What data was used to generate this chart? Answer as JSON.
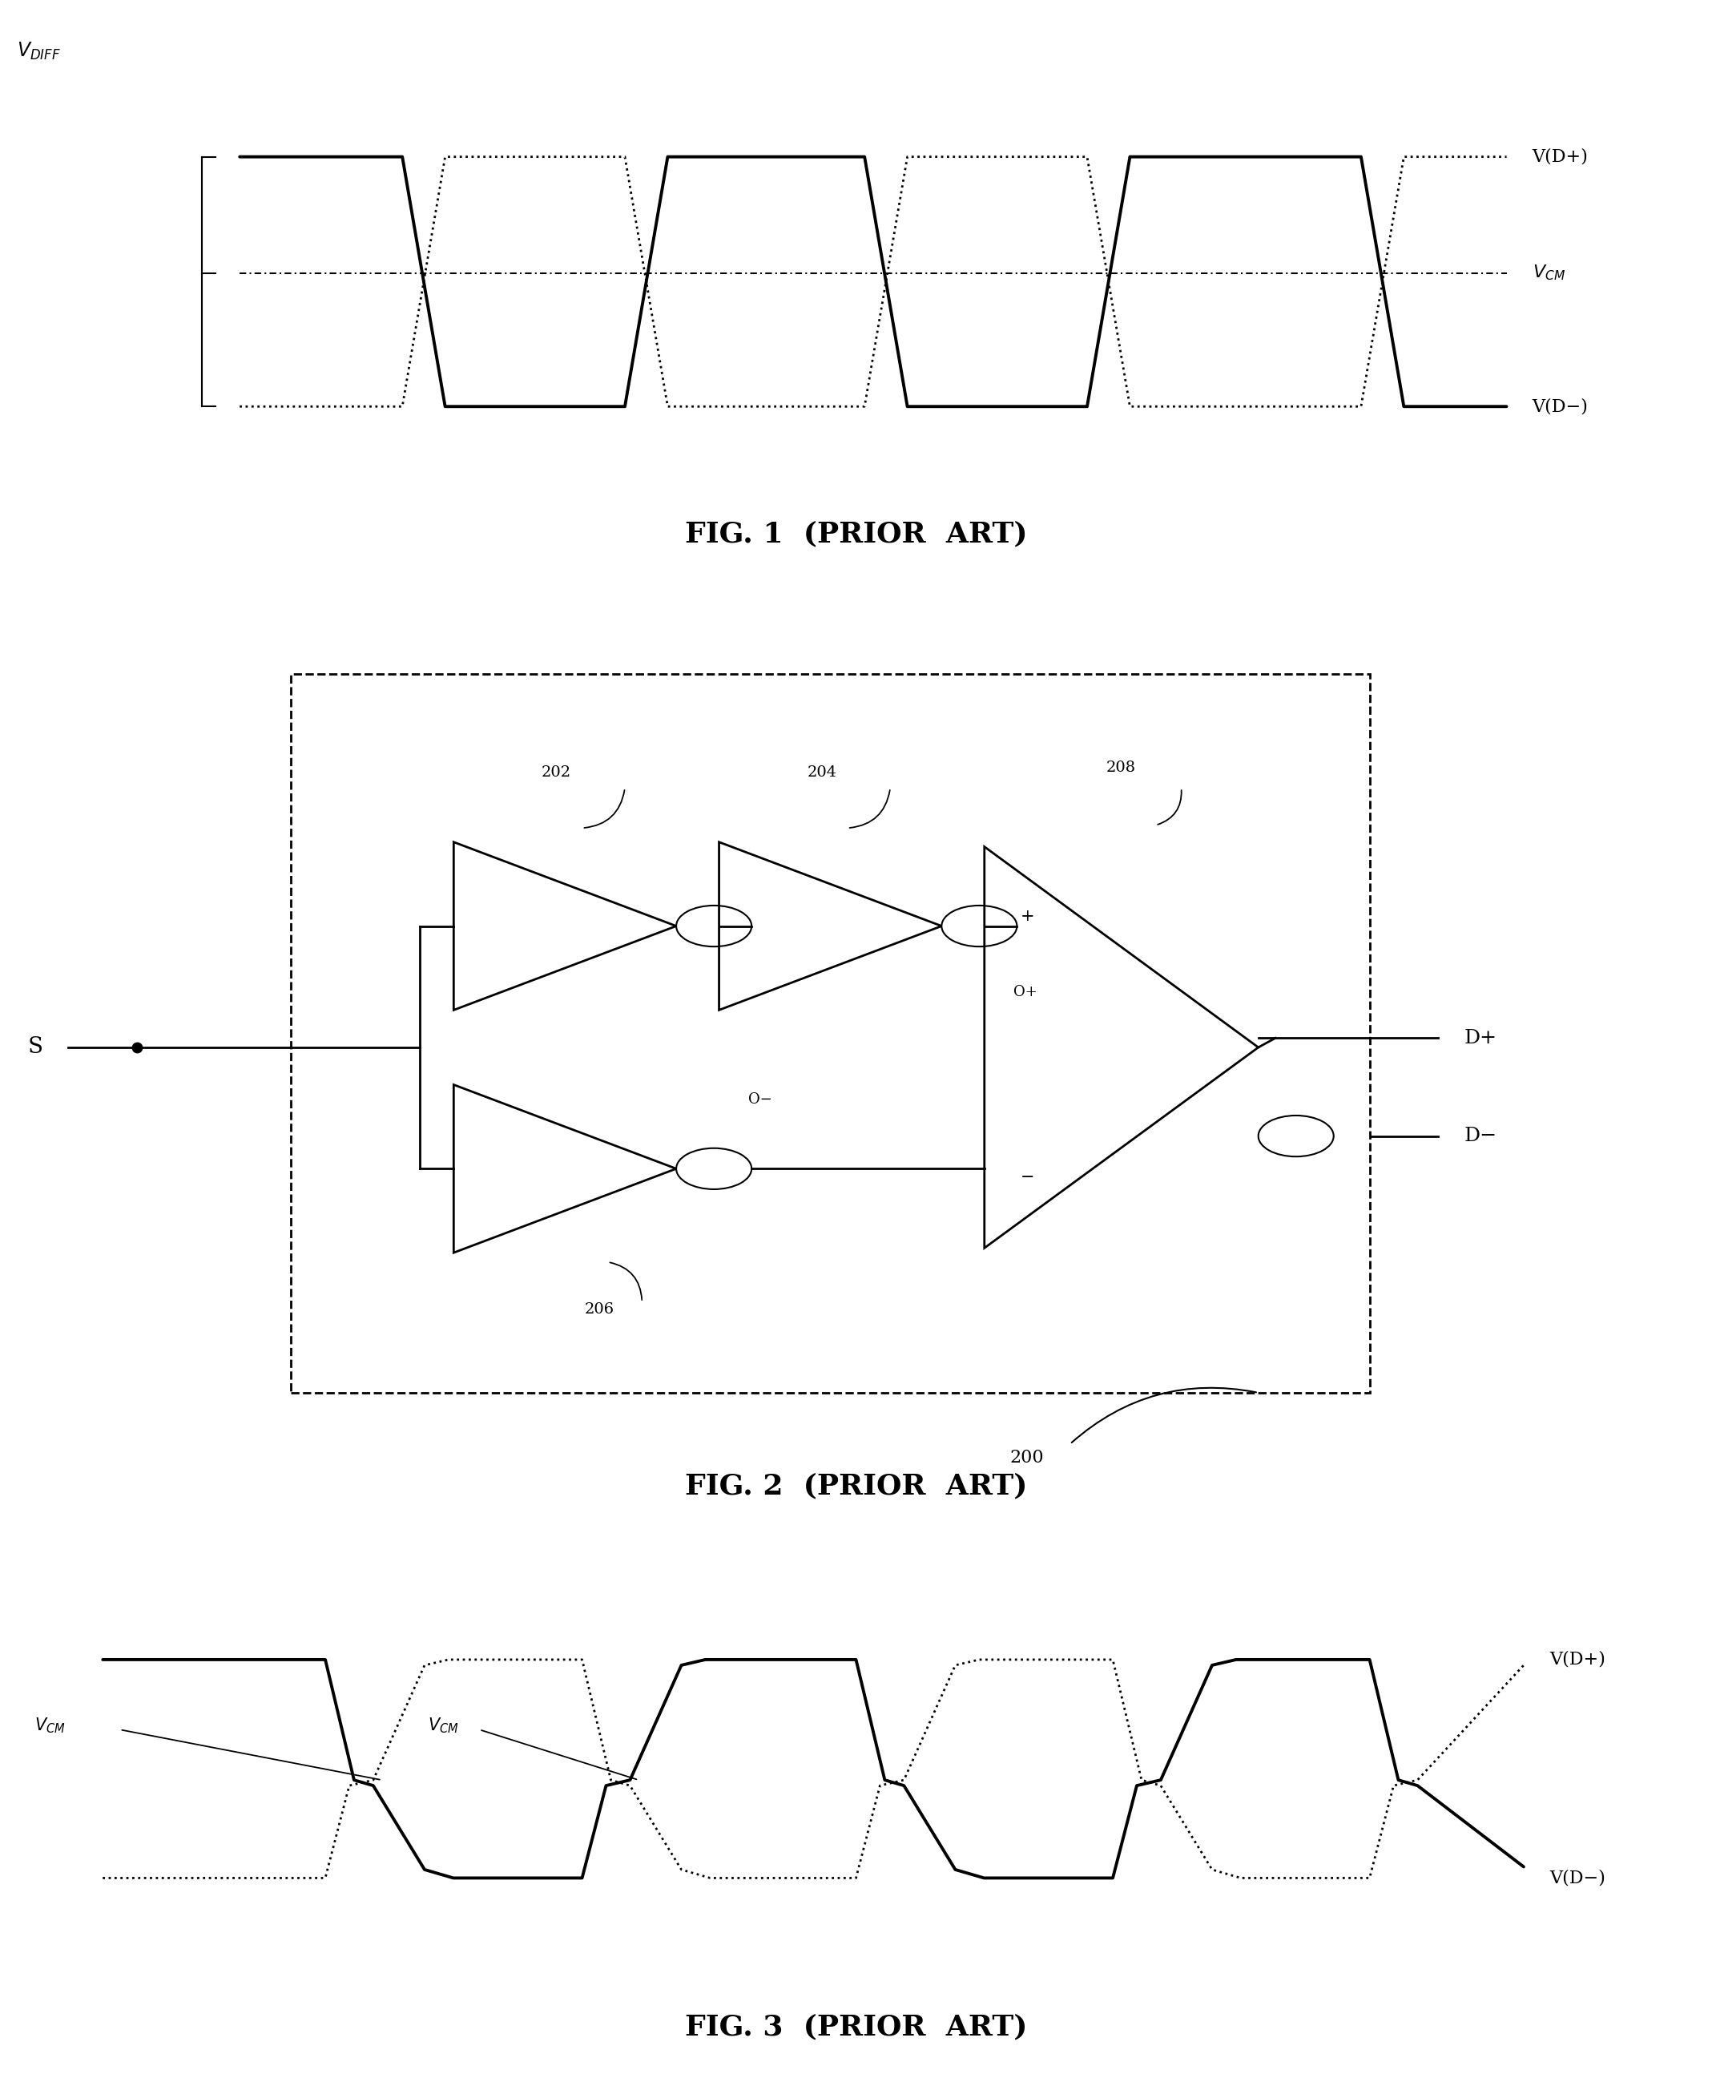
{
  "fig_width": 21.37,
  "fig_height": 25.88,
  "bg_color": "#ffffff",
  "fig1_caption": "FIG. 1  (PRIOR  ART)",
  "fig2_caption": "FIG. 2  (PRIOR  ART)",
  "fig3_caption": "FIG. 3  (PRIOR  ART)",
  "label_200": "200",
  "label_202": "202",
  "label_204": "204",
  "label_206": "206",
  "label_208": "208",
  "label_S": "S",
  "label_Dplus": "D+",
  "label_Dminus": "D−",
  "label_Oplus": "O+",
  "label_Ominus": "O−",
  "label_VDplus": "V(D+)",
  "label_VDminus": "V(D−)",
  "label_VCM_math": "$V_{CM}$",
  "label_VDIFF_math": "$V_{DIFF}$"
}
